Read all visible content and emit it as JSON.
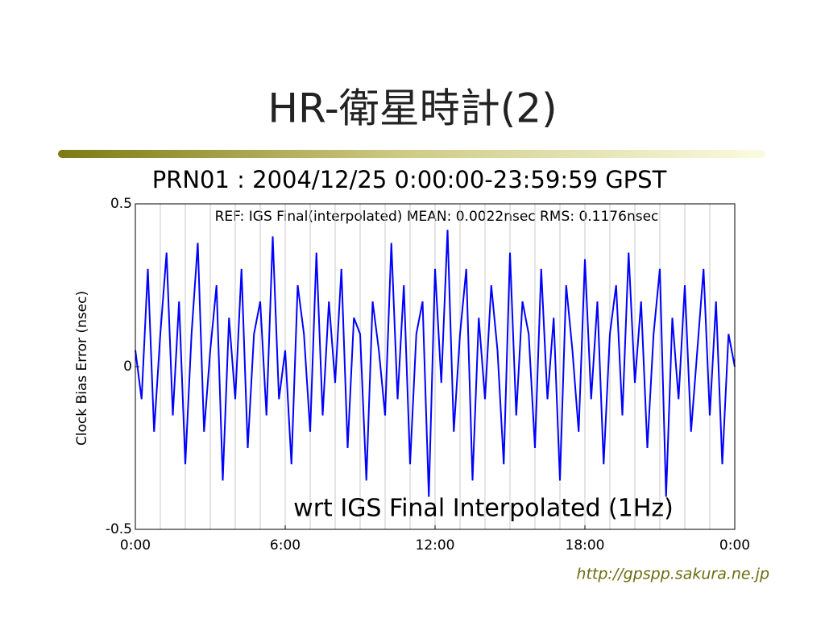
{
  "slide_title": "HR-衛星時計(2)",
  "footer": "http://gpspp.sakura.ne.jp",
  "chart_data": {
    "type": "line",
    "title": "PRN01 : 2004/12/25 0:00:00-23:59:59 GPST",
    "ylabel": "Clock Bias Error (nsec)",
    "annotations": [
      "REF: IGS Final(interpolated)  MEAN: 0.0022nsec RMS: 0.1176nsec",
      "wrt IGS Final Interpolated (1Hz)"
    ],
    "xlim": [
      0,
      24
    ],
    "xticks": [
      {
        "value": 0,
        "label": "0:00"
      },
      {
        "value": 6,
        "label": "6:00"
      },
      {
        "value": 12,
        "label": "12:00"
      },
      {
        "value": 18,
        "label": "18:00"
      },
      {
        "value": 24,
        "label": "0:00"
      }
    ],
    "x_grid": [
      1,
      2,
      3,
      4,
      5,
      6,
      7,
      8,
      9,
      10,
      11,
      12,
      13,
      14,
      15,
      16,
      17,
      18,
      19,
      20,
      21,
      22,
      23
    ],
    "ylim": [
      -0.5,
      0.5
    ],
    "yticks": [
      -0.5,
      0,
      0.5
    ],
    "series": [
      {
        "color": "#0000ff",
        "x": [
          0,
          0.25,
          0.5,
          0.75,
          1,
          1.25,
          1.5,
          1.75,
          2,
          2.25,
          2.5,
          2.75,
          3,
          3.25,
          3.5,
          3.75,
          4,
          4.25,
          4.5,
          4.75,
          5,
          5.25,
          5.5,
          5.75,
          6,
          6.25,
          6.5,
          6.75,
          7,
          7.25,
          7.5,
          7.75,
          8,
          8.25,
          8.5,
          8.75,
          9,
          9.25,
          9.5,
          9.75,
          10,
          10.25,
          10.5,
          10.75,
          11,
          11.25,
          11.5,
          11.75,
          12,
          12.25,
          12.5,
          12.75,
          13,
          13.25,
          13.5,
          13.75,
          14,
          14.25,
          14.5,
          14.75,
          15,
          15.25,
          15.5,
          15.75,
          16,
          16.25,
          16.5,
          16.75,
          17,
          17.25,
          17.5,
          17.75,
          18,
          18.25,
          18.5,
          18.75,
          19,
          19.25,
          19.5,
          19.75,
          20,
          20.25,
          20.5,
          20.75,
          21,
          21.25,
          21.5,
          21.75,
          22,
          22.25,
          22.5,
          22.75,
          23,
          23.25,
          23.5,
          23.75,
          24
        ],
        "values": [
          0.05,
          -0.1,
          0.3,
          -0.2,
          0.1,
          0.35,
          -0.15,
          0.2,
          -0.3,
          0.1,
          0.38,
          -0.2,
          0.05,
          0.25,
          -0.35,
          0.15,
          -0.1,
          0.3,
          -0.25,
          0.1,
          0.2,
          -0.15,
          0.4,
          -0.1,
          0.05,
          -0.3,
          0.25,
          0.1,
          -0.2,
          0.35,
          -0.15,
          0.2,
          -0.05,
          0.3,
          -0.25,
          0.15,
          0.1,
          -0.35,
          0.2,
          0.05,
          -0.15,
          0.38,
          -0.1,
          0.25,
          -0.3,
          0.1,
          0.2,
          -0.4,
          0.3,
          -0.05,
          0.42,
          -0.2,
          0.1,
          0.3,
          -0.35,
          0.15,
          -0.1,
          0.25,
          0.05,
          -0.3,
          0.35,
          -0.15,
          0.2,
          0.1,
          -0.25,
          0.3,
          -0.1,
          0.15,
          -0.35,
          0.25,
          0.05,
          -0.2,
          0.33,
          -0.1,
          0.2,
          -0.3,
          0.1,
          0.25,
          -0.15,
          0.35,
          -0.05,
          0.2,
          -0.25,
          0.1,
          0.3,
          -0.4,
          0.15,
          -0.1,
          0.25,
          -0.2,
          0.05,
          0.3,
          -0.15,
          0.2,
          -0.3,
          0.1,
          0.0
        ]
      }
    ]
  }
}
